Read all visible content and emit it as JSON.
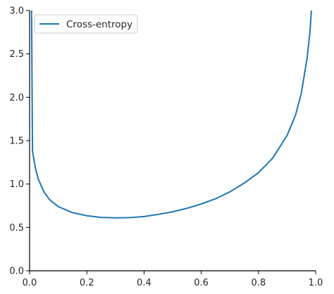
{
  "chart_data": {
    "type": "line",
    "title": "",
    "xlabel": "",
    "ylabel": "",
    "xlim": [
      0.0,
      1.0
    ],
    "ylim": [
      0.0,
      3.0
    ],
    "grid": false,
    "legend_position": "top-left",
    "x_ticks": [
      "0.0",
      "0.2",
      "0.4",
      "0.6",
      "0.8",
      "1.0"
    ],
    "y_ticks": [
      "0.0",
      "0.5",
      "1.0",
      "1.5",
      "2.0",
      "2.5",
      "3.0"
    ],
    "series": [
      {
        "name": "Cross-entropy",
        "color": "#1f77b4",
        "x": [
          0.01,
          0.02,
          0.03,
          0.05,
          0.07,
          0.1,
          0.15,
          0.2,
          0.25,
          0.3,
          0.35,
          0.4,
          0.45,
          0.5,
          0.55,
          0.6,
          0.65,
          0.7,
          0.75,
          0.8,
          0.85,
          0.9,
          0.93,
          0.95,
          0.97,
          0.98,
          0.985
        ],
        "y": [
          1.38,
          1.19,
          1.06,
          0.91,
          0.82,
          0.74,
          0.67,
          0.635,
          0.615,
          0.61,
          0.613,
          0.625,
          0.65,
          0.68,
          0.72,
          0.77,
          0.83,
          0.91,
          1.01,
          1.13,
          1.3,
          1.56,
          1.8,
          2.05,
          2.45,
          2.75,
          3.0
        ]
      }
    ]
  }
}
